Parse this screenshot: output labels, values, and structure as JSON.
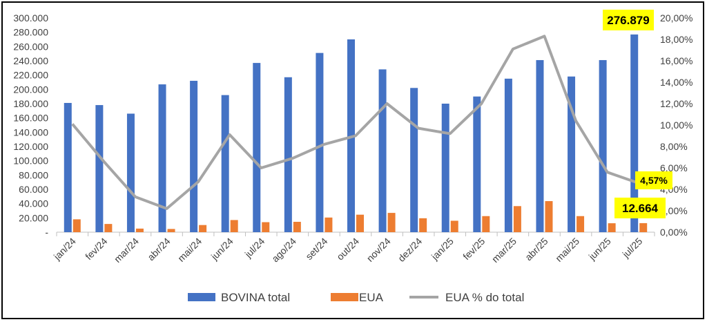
{
  "chart_data": {
    "type": "bar",
    "categories": [
      "jan/24",
      "fev/24",
      "mar/24",
      "abr/24",
      "mai/24",
      "jun/24",
      "jul/24",
      "ago/24",
      "set/24",
      "out/24",
      "nov/24",
      "dez/24",
      "jan/25",
      "fev/25",
      "mar/25",
      "abr/25",
      "mai/25",
      "jun/25",
      "jul/25"
    ],
    "series": [
      {
        "name": "BOVINA total",
        "axis": "left",
        "kind": "bar",
        "color": "#4472C4",
        "values": [
          181000,
          178000,
          166000,
          207000,
          212000,
          192000,
          237000,
          217000,
          251000,
          270000,
          228000,
          202000,
          180000,
          190000,
          215000,
          241000,
          218000,
          241000,
          276879
        ]
      },
      {
        "name": "EUA",
        "axis": "left",
        "kind": "bar",
        "color": "#ED7D31",
        "values": [
          18000,
          11500,
          5000,
          4500,
          10000,
          17000,
          14000,
          14500,
          20500,
          24500,
          27000,
          19500,
          16000,
          22500,
          36500,
          43500,
          22500,
          12500,
          12664
        ]
      },
      {
        "name": "EUA % do total",
        "axis": "right",
        "kind": "line",
        "color": "#A5A5A5",
        "values": [
          10.1,
          6.6,
          3.3,
          2.2,
          4.7,
          9.1,
          6.0,
          6.9,
          8.2,
          9.0,
          12.0,
          9.7,
          9.2,
          12.0,
          17.1,
          18.3,
          10.4,
          5.6,
          4.57
        ]
      }
    ],
    "y_left": {
      "min": 0,
      "max": 300000,
      "step": 20000,
      "tick_labels": [
        "-",
        "20.000",
        "40.000",
        "60.000",
        "80.000",
        "100.000",
        "120.000",
        "140.000",
        "160.000",
        "180.000",
        "200.000",
        "220.000",
        "240.000",
        "260.000",
        "280.000",
        "300.000"
      ]
    },
    "y_right": {
      "min": 0,
      "max": 20,
      "step": 2,
      "tick_labels": [
        "0,00%",
        "2,00%",
        "4,00%",
        "6,00%",
        "8,00%",
        "10,00%",
        "12,00%",
        "14,00%",
        "16,00%",
        "18,00%",
        "20,00%"
      ]
    },
    "annotations": [
      {
        "text": "276.879",
        "target_series": 0,
        "target_index": 18
      },
      {
        "text": "4,57%",
        "target_series": 2,
        "target_index": 18
      },
      {
        "text": "12.664",
        "target_series": 1,
        "target_index": 18
      }
    ],
    "legend_position": "bottom",
    "grid": false,
    "callout_color": "#FFFF00"
  }
}
